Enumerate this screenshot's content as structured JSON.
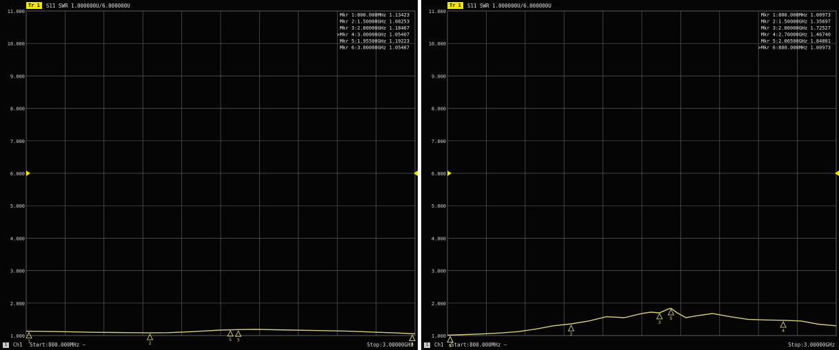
{
  "chart_data": [
    {
      "type": "line",
      "header": "S11 SWR 1.000000U/6.000000U",
      "trace_label": "Tr 1",
      "ylim": [
        1.0,
        11.0
      ],
      "y_ticks": [
        "1.000",
        "2.000",
        "3.000",
        "4.000",
        "5.000",
        "6.000",
        "7.000",
        "8.000",
        "9.000",
        "10.000",
        "11.000"
      ],
      "reference_level": 6.0,
      "grid": true,
      "x_range_mhz": [
        800,
        3000
      ],
      "x": [
        800,
        900,
        1000,
        1100,
        1200,
        1300,
        1400,
        1500,
        1600,
        1700,
        1800,
        1900,
        2000,
        2100,
        2200,
        2300,
        2400,
        2500,
        2600,
        2700,
        2800,
        2900,
        3000
      ],
      "series": [
        {
          "values": [
            1.134,
            1.13,
            1.12,
            1.11,
            1.1,
            1.095,
            1.09,
            1.083,
            1.09,
            1.11,
            1.14,
            1.17,
            1.185,
            1.19,
            1.18,
            1.17,
            1.16,
            1.15,
            1.14,
            1.12,
            1.1,
            1.08,
            1.054
          ]
        }
      ],
      "markers": [
        {
          "id": "1",
          "x": 800,
          "y": 1.13423,
          "text": "Mkr 1:800.000MHz 1.13423",
          "active": false
        },
        {
          "id": "2",
          "x": 1500,
          "y": 1.08253,
          "text": "Mkr 2:1.50000GHz 1.08253",
          "active": false
        },
        {
          "id": "3",
          "x": 2000,
          "y": 1.18467,
          "text": "Mkr 3:2.00000GHz 1.18467",
          "active": false
        },
        {
          "id": "4",
          "x": 3000,
          "y": 1.05407,
          "text": "Mkr 4:3.00000GHz 1.05407",
          "active": true
        },
        {
          "id": "5",
          "x": 1955,
          "y": 1.19223,
          "text": "Mkr 5:1.95500GHz 1.19223",
          "active": false
        },
        {
          "id": "6",
          "x": 3000,
          "y": 1.05407,
          "text": "Mkr 6:3.00000GHz 1.05407",
          "active": false
        }
      ],
      "footer_channel": "Ch1",
      "footer_start": "Start:800.000MHz —",
      "footer_stop": "Stop:3.00000GHz"
    },
    {
      "type": "line",
      "header": "S11 SWR 1.000000U/6.000000U",
      "trace_label": "Tr 1",
      "ylim": [
        1.0,
        11.0
      ],
      "y_ticks": [
        "1.000",
        "2.000",
        "3.000",
        "4.000",
        "5.000",
        "6.000",
        "7.000",
        "8.000",
        "9.000",
        "10.000",
        "11.000"
      ],
      "reference_level": 6.0,
      "grid": true,
      "x_range_mhz": [
        800,
        3000
      ],
      "x": [
        800,
        900,
        1000,
        1100,
        1200,
        1300,
        1400,
        1500,
        1600,
        1700,
        1800,
        1900,
        1950,
        2000,
        2050,
        2065,
        2100,
        2150,
        2200,
        2300,
        2400,
        2500,
        2600,
        2700,
        2800,
        2900,
        3000
      ],
      "series": [
        {
          "values": [
            1.01,
            1.03,
            1.05,
            1.08,
            1.12,
            1.2,
            1.3,
            1.36,
            1.45,
            1.58,
            1.55,
            1.68,
            1.72,
            1.7,
            1.82,
            1.84,
            1.7,
            1.55,
            1.6,
            1.68,
            1.58,
            1.5,
            1.48,
            1.47,
            1.45,
            1.35,
            1.3
          ]
        }
      ],
      "markers": [
        {
          "id": "1",
          "x": 800,
          "y": 1.00973,
          "text": "Mkr 1:800.000MHz 1.00973",
          "active": false
        },
        {
          "id": "2",
          "x": 1500,
          "y": 1.35697,
          "text": "Mkr 2:1.50000GHz 1.35697",
          "active": false
        },
        {
          "id": "3",
          "x": 2000,
          "y": 1.72527,
          "text": "Mkr 3:2.00000GHz 1.72527",
          "active": false
        },
        {
          "id": "4",
          "x": 2700,
          "y": 1.4674,
          "text": "Mkr 4:2.70000GHz 1.46740",
          "active": false
        },
        {
          "id": "5",
          "x": 2065,
          "y": 1.84801,
          "text": "Mkr 5:2.06500GHz 1.84801",
          "active": false
        },
        {
          "id": "6",
          "x": 800,
          "y": 1.00973,
          "text": "Mkr 6:800.000MHz 1.00973",
          "active": true
        }
      ],
      "footer_channel": "Ch1",
      "footer_start": "Start:800.000MHz —",
      "footer_stop": "Stop:3.00000GHz"
    }
  ],
  "colors": {
    "background": "#050505",
    "grid": "#5a5a5a",
    "trace": "#d8cf78",
    "marker": "#d8cf78",
    "text": "#e0e0e0",
    "header_box": "#f2e600",
    "reference_arrow": "#f2e600"
  }
}
